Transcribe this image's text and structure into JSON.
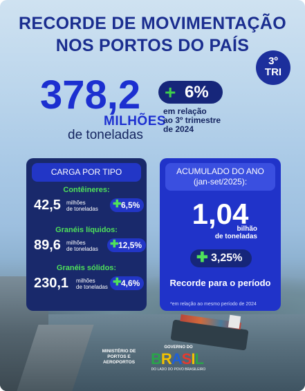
{
  "title": {
    "line1": "RECORDE DE MOVIMENTAÇÃO",
    "line2": "NOS PORTOS DO PAÍS"
  },
  "badge": {
    "line1": "3º",
    "line2": "TRI"
  },
  "headline": {
    "value": "378,2",
    "unit_top": "MILHÕES",
    "unit_bottom": "de toneladas",
    "change": "6%",
    "change_sign": "+",
    "relation": [
      "em relação",
      "ao 3º trimestre",
      "de 2024"
    ]
  },
  "carga_por_tipo": {
    "header": "CARGA POR TIPO",
    "items": [
      {
        "category": "Contêineres:",
        "value": "42,5",
        "unit": [
          "milhões",
          "de toneladas"
        ],
        "change": "6,5%"
      },
      {
        "category": "Granéis líquidos:",
        "value": "89,6",
        "unit": [
          "milhões",
          "de toneladas"
        ],
        "change": "12,5%"
      },
      {
        "category": "Granéis sólidos:",
        "value": "230,1",
        "unit": [
          "milhões",
          "de toneladas"
        ],
        "change": "4,6%"
      }
    ]
  },
  "acumulado": {
    "header_line1": "ACUMULADO DO ANO",
    "header_line2": "(jan-set/2025):",
    "value": "1,04",
    "unit": [
      "bilhão",
      "de toneladas"
    ],
    "change": "3,25%",
    "record": "Recorde para o período",
    "footnote": "*em relação ao mesmo período de 2024"
  },
  "footer": {
    "ministry": [
      "MINISTÉRIO DE",
      "PORTOS E",
      "AEROPORTOS"
    ],
    "gov_top": "GOVERNO DO",
    "gov_name": "BRASIL",
    "gov_sub": "DO LADO DO POVO BRASILEIRO"
  },
  "colors": {
    "primary": "#1c2fd0",
    "dark_box": "#19296b",
    "blue_box": "#2033c9",
    "green": "#4fe15a"
  }
}
